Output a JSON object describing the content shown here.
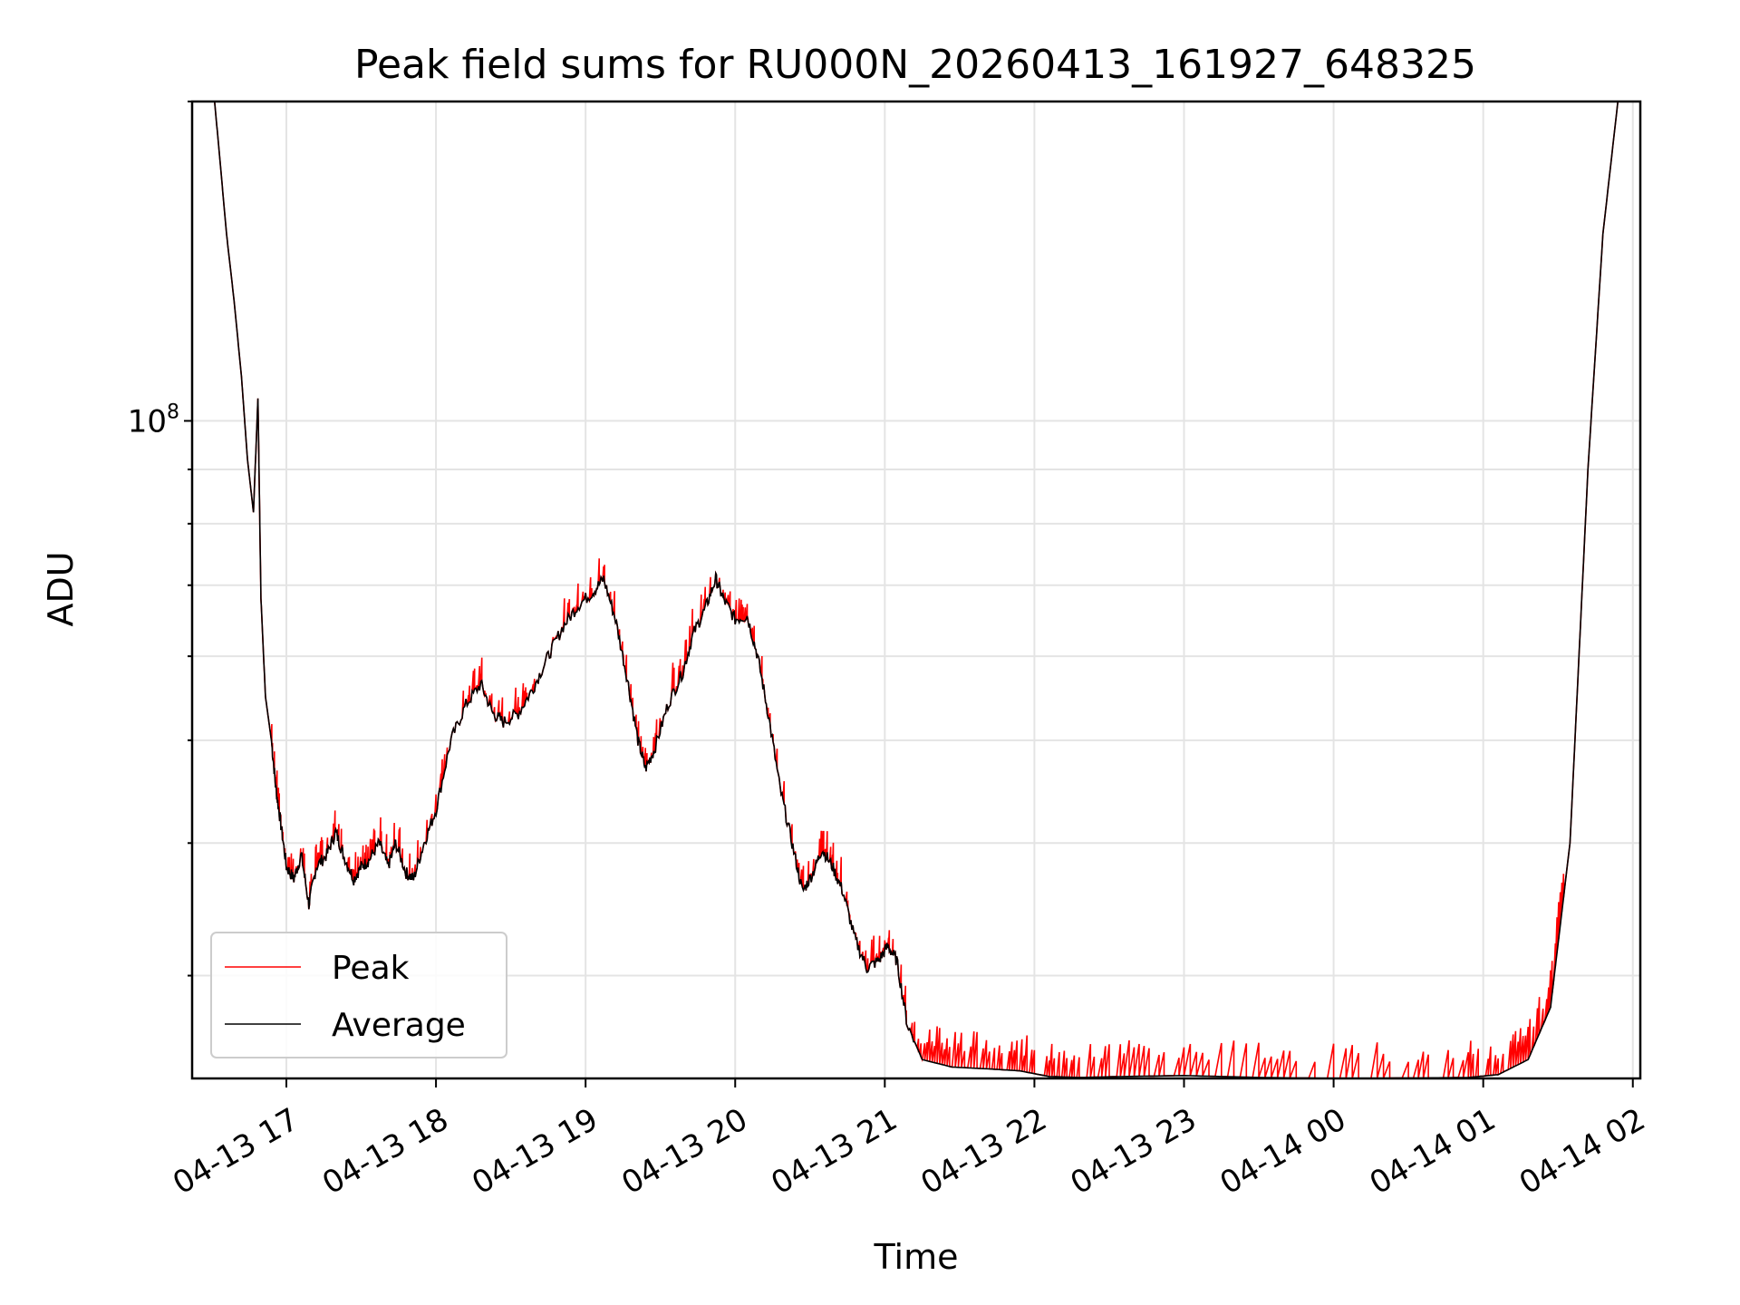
{
  "chart_data": {
    "type": "line",
    "title": "Peak field sums for RU000N_20260413_161927_648325",
    "xlabel": "Time",
    "ylabel": "ADU",
    "y_scale": "log",
    "ylim": [
      24000000,
      200000000
    ],
    "y_major_tick": {
      "value": 100000000,
      "base": "10",
      "exponent": "8"
    },
    "y_minor_ticks": [
      30000000,
      40000000,
      50000000,
      60000000,
      70000000,
      80000000,
      90000000,
      200000000
    ],
    "xlim": [
      16.37,
      26.05
    ],
    "x_ticks": [
      {
        "value": 17,
        "label": "04-13 17"
      },
      {
        "value": 18,
        "label": "04-13 18"
      },
      {
        "value": 19,
        "label": "04-13 19"
      },
      {
        "value": 20,
        "label": "04-13 20"
      },
      {
        "value": 21,
        "label": "04-13 21"
      },
      {
        "value": 22,
        "label": "04-13 22"
      },
      {
        "value": 23,
        "label": "04-13 23"
      },
      {
        "value": 24,
        "label": "04-14 00"
      },
      {
        "value": 25,
        "label": "04-14 01"
      },
      {
        "value": 26,
        "label": "04-14 02"
      }
    ],
    "grid": true,
    "legend_position": "lower-left",
    "series": [
      {
        "name": "Peak",
        "color": "#ff0000"
      },
      {
        "name": "Average",
        "color": "#000000"
      }
    ],
    "average_points": [
      [
        16.37,
        200000000
      ],
      [
        16.52,
        200000000
      ],
      [
        16.55,
        180000000
      ],
      [
        16.6,
        150000000
      ],
      [
        16.65,
        130000000
      ],
      [
        16.7,
        110000000
      ],
      [
        16.74,
        92000000
      ],
      [
        16.78,
        82000000
      ],
      [
        16.81,
        105000000
      ],
      [
        16.83,
        68000000
      ],
      [
        16.86,
        55000000
      ],
      [
        16.9,
        50000000
      ],
      [
        16.93,
        45000000
      ],
      [
        16.96,
        42000000
      ],
      [
        17.0,
        38000000
      ],
      [
        17.05,
        37000000
      ],
      [
        17.1,
        39000000
      ],
      [
        17.15,
        35000000
      ],
      [
        17.2,
        38000000
      ],
      [
        17.27,
        39000000
      ],
      [
        17.33,
        41000000
      ],
      [
        17.38,
        39000000
      ],
      [
        17.45,
        37000000
      ],
      [
        17.5,
        38000000
      ],
      [
        17.55,
        38500000
      ],
      [
        17.62,
        40000000
      ],
      [
        17.68,
        38000000
      ],
      [
        17.73,
        40000000
      ],
      [
        17.8,
        37500000
      ],
      [
        17.85,
        37000000
      ],
      [
        17.92,
        40000000
      ],
      [
        18.0,
        43000000
      ],
      [
        18.1,
        50000000
      ],
      [
        18.2,
        54000000
      ],
      [
        18.3,
        56500000
      ],
      [
        18.38,
        53000000
      ],
      [
        18.45,
        52000000
      ],
      [
        18.55,
        53000000
      ],
      [
        18.65,
        56000000
      ],
      [
        18.75,
        60000000
      ],
      [
        18.85,
        64000000
      ],
      [
        18.95,
        67000000
      ],
      [
        19.05,
        69000000
      ],
      [
        19.12,
        71000000
      ],
      [
        19.2,
        65000000
      ],
      [
        19.28,
        57000000
      ],
      [
        19.35,
        50000000
      ],
      [
        19.4,
        47000000
      ],
      [
        19.46,
        49000000
      ],
      [
        19.55,
        54000000
      ],
      [
        19.65,
        58000000
      ],
      [
        19.72,
        63000000
      ],
      [
        19.8,
        66500000
      ],
      [
        19.87,
        71000000
      ],
      [
        19.92,
        68000000
      ],
      [
        20.0,
        65000000
      ],
      [
        20.08,
        65500000
      ],
      [
        20.15,
        60000000
      ],
      [
        20.22,
        53000000
      ],
      [
        20.3,
        45000000
      ],
      [
        20.38,
        40000000
      ],
      [
        20.45,
        36000000
      ],
      [
        20.52,
        37500000
      ],
      [
        20.58,
        39500000
      ],
      [
        20.65,
        38000000
      ],
      [
        20.72,
        36000000
      ],
      [
        20.8,
        32500000
      ],
      [
        20.88,
        30500000
      ],
      [
        20.96,
        31000000
      ],
      [
        21.02,
        32000000
      ],
      [
        21.08,
        31000000
      ],
      [
        21.15,
        27000000
      ],
      [
        21.25,
        25000000
      ],
      [
        21.45,
        24600000
      ],
      [
        21.7,
        24500000
      ],
      [
        21.9,
        24400000
      ],
      [
        22.1,
        24100000
      ],
      [
        22.3,
        24050000
      ],
      [
        22.6,
        24100000
      ],
      [
        23.0,
        24150000
      ],
      [
        23.5,
        24050000
      ],
      [
        24.0,
        24000000
      ],
      [
        24.5,
        24020000
      ],
      [
        24.9,
        24050000
      ],
      [
        25.1,
        24200000
      ],
      [
        25.3,
        25000000
      ],
      [
        25.45,
        28000000
      ],
      [
        25.58,
        40000000
      ],
      [
        25.7,
        90000000
      ],
      [
        25.8,
        150000000
      ],
      [
        25.9,
        200000000
      ],
      [
        26.05,
        200000000
      ]
    ]
  }
}
